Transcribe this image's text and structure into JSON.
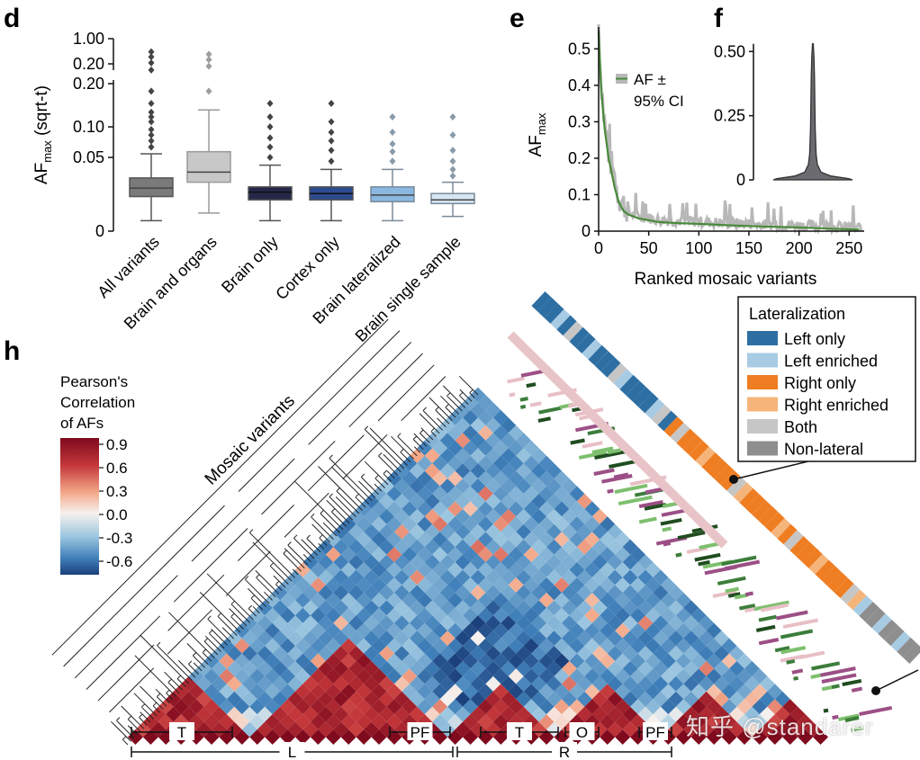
{
  "panels": {
    "d": "d",
    "e": "e",
    "f": "f",
    "h": "h"
  },
  "watermark": "知乎 @standarer",
  "chart_data": [
    {
      "panel": "d",
      "type": "box",
      "ylabel": "AF",
      "ylabel_sub": "max",
      "ylabel_suffix": " (sqrt-t)",
      "scale": "sqrt",
      "broken_axis": true,
      "ytick_labels": [
        "1.00",
        "0.20",
        "0.20",
        "0.10",
        "0.05",
        "0"
      ],
      "categories": [
        "All variants",
        "Brain and organs",
        "Brain only",
        "Cortex only",
        "Brain lateralized",
        "Brain single sample"
      ],
      "colors": [
        "#7a7a7a",
        "#c8c8c8",
        "#25274a",
        "#2d4a8f",
        "#8ab8e0",
        "#d6e6f2"
      ],
      "boxes": [
        {
          "whislo": 0.001,
          "q1": 0.011,
          "med": 0.017,
          "q3": 0.026,
          "whishi": 0.055,
          "outliers": [
            0.065,
            0.075,
            0.085,
            0.095,
            0.11,
            0.12,
            0.13,
            0.15,
            0.18,
            0.3,
            0.5,
            0.7,
            0.9
          ]
        },
        {
          "whislo": 0.003,
          "q1": 0.022,
          "med": 0.032,
          "q3": 0.058,
          "whishi": 0.135,
          "outliers": [
            0.18,
            0.4,
            0.6,
            0.8
          ]
        },
        {
          "whislo": 0.001,
          "q1": 0.009,
          "med": 0.014,
          "q3": 0.018,
          "whishi": 0.04,
          "outliers": [
            0.05,
            0.065,
            0.08,
            0.1,
            0.12,
            0.15
          ]
        },
        {
          "whislo": 0.001,
          "q1": 0.009,
          "med": 0.013,
          "q3": 0.018,
          "whishi": 0.035,
          "outliers": [
            0.045,
            0.06,
            0.075,
            0.09,
            0.11,
            0.15
          ]
        },
        {
          "whislo": 0.001,
          "q1": 0.008,
          "med": 0.012,
          "q3": 0.018,
          "whishi": 0.035,
          "outliers": [
            0.045,
            0.058,
            0.07,
            0.09,
            0.12
          ]
        },
        {
          "whislo": 0.002,
          "q1": 0.007,
          "med": 0.009,
          "q3": 0.013,
          "whishi": 0.022,
          "outliers": [
            0.028,
            0.035,
            0.045,
            0.06,
            0.085,
            0.12
          ]
        }
      ]
    },
    {
      "panel": "e",
      "type": "line",
      "xlabel": "Ranked mosaic variants",
      "ylabel": "AF",
      "ylabel_sub": "max",
      "xlim": [
        0,
        265
      ],
      "ylim": [
        0,
        0.56
      ],
      "xticks": [
        0,
        50,
        100,
        150,
        200,
        250
      ],
      "yticks": [
        0,
        0.1,
        0.2,
        0.3,
        0.4,
        0.5
      ],
      "legend": "AF ±\n95% CI",
      "legend_line1": "AF ±",
      "legend_line2": "95% CI",
      "legend_position": "top-center",
      "series": [
        {
          "x": [
            0,
            2,
            4,
            6,
            8,
            10,
            13,
            16,
            20,
            25,
            30,
            40,
            50,
            60,
            80,
            100,
            130,
            160,
            200,
            230,
            260
          ],
          "y": [
            0.55,
            0.42,
            0.34,
            0.28,
            0.24,
            0.2,
            0.16,
            0.12,
            0.08,
            0.055,
            0.045,
            0.035,
            0.03,
            0.025,
            0.022,
            0.02,
            0.016,
            0.013,
            0.01,
            0.007,
            0.004
          ],
          "color": "#4a8a3c"
        }
      ],
      "ci_color": "#b8b8b8"
    },
    {
      "panel": "f",
      "type": "violin",
      "ylim": [
        0,
        0.55
      ],
      "yticks": [
        0,
        0.25,
        0.5
      ],
      "ytick_labels": [
        "0",
        "0.25",
        "0.50"
      ],
      "color": "#6b6b70"
    },
    {
      "panel": "h",
      "type": "heatmap",
      "subtitle": "Mosaic variants",
      "colorbar_title": [
        "Pearson's",
        "Correlation",
        "of AFs"
      ],
      "colorbar_ticks": [
        "0.9",
        "0.6",
        "0.3",
        "0.0",
        "-0.3",
        "-0.6"
      ],
      "colormap": [
        "#b2182b",
        "#ef8a62",
        "#fddbc7",
        "#f7f7f7",
        "#d1e5f0",
        "#67a9cf",
        "#2166ac"
      ],
      "bottom_segments_top": [
        "T",
        "PF",
        "T",
        "O",
        "PF"
      ],
      "bottom_segments_bottom": [
        "L",
        "R"
      ],
      "legend_title": "Lateralization",
      "legend": [
        {
          "label": "Left only",
          "color": "#2e6fa3"
        },
        {
          "label": "Left enriched",
          "color": "#a8cbe4"
        },
        {
          "label": "Right only",
          "color": "#ef7d22"
        },
        {
          "label": "Right enriched",
          "color": "#f5b57a"
        },
        {
          "label": "Both",
          "color": "#c6c6c6"
        },
        {
          "label": "Non-lateral",
          "color": "#8e8e8e"
        }
      ],
      "legend_position": "top-right"
    }
  ]
}
